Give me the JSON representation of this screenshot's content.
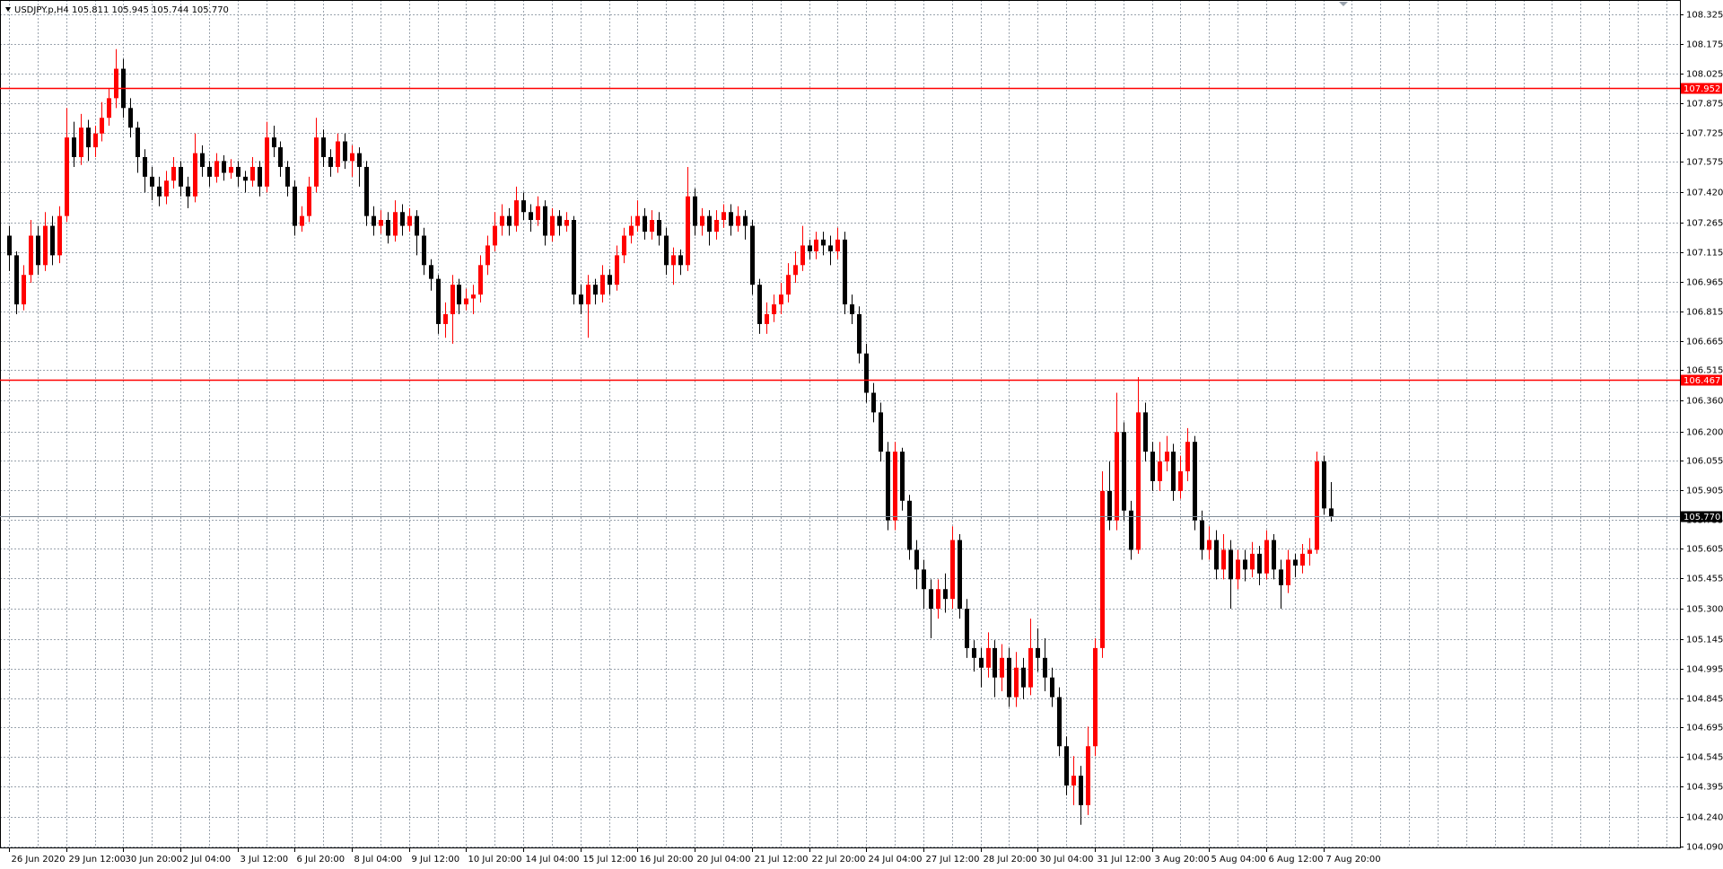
{
  "chart_data": {
    "type": "candlestick",
    "title": "USDJPY.p,H4  105.811 105.945 105.744 105.770",
    "bull_color": "#ff0000",
    "bear_color": "#000000",
    "grid": true,
    "ylim": [
      104.08,
      108.4
    ],
    "yticks": [
      108.325,
      108.175,
      108.025,
      107.875,
      107.725,
      107.575,
      {
        "value": 107.42,
        "label": "107.420"
      },
      107.265,
      107.115,
      106.965,
      106.815,
      106.665,
      106.515,
      {
        "value": 106.36,
        "label": "106.360"
      },
      {
        "value": 106.2,
        "label": "106.200"
      },
      106.055,
      105.905,
      105.755,
      105.605,
      105.455,
      {
        "value": 105.3,
        "label": "105.300"
      },
      105.145,
      104.995,
      104.845,
      104.695,
      104.545,
      104.395,
      {
        "value": 104.24,
        "label": "104.240"
      },
      {
        "value": 104.09,
        "label": "104.090"
      }
    ],
    "hlines": [
      {
        "value": 107.952,
        "color": "#ff0000"
      },
      {
        "value": 106.467,
        "color": "#ff0000"
      },
      {
        "value": 105.77,
        "label": "105.770",
        "color": "#000000"
      }
    ],
    "categories": [
      "26 Jun 2020",
      null,
      null,
      null,
      null,
      null,
      null,
      null,
      "29 Jun 12:00",
      null,
      null,
      null,
      null,
      null,
      null,
      null,
      "30 Jun 20:00",
      null,
      null,
      null,
      null,
      null,
      null,
      null,
      "2 Jul 04:00",
      null,
      null,
      null,
      null,
      null,
      null,
      null,
      "3 Jul 12:00",
      null,
      null,
      null,
      null,
      null,
      null,
      null,
      "6 Jul 20:00",
      null,
      null,
      null,
      null,
      null,
      null,
      null,
      "8 Jul 04:00",
      null,
      null,
      null,
      null,
      null,
      null,
      null,
      "9 Jul 12:00",
      null,
      null,
      null,
      null,
      null,
      null,
      null,
      "10 Jul 20:00",
      null,
      null,
      null,
      null,
      null,
      null,
      null,
      "14 Jul 04:00",
      null,
      null,
      null,
      null,
      null,
      null,
      null,
      "15 Jul 12:00",
      null,
      null,
      null,
      null,
      null,
      null,
      null,
      "16 Jul 20:00",
      null,
      null,
      null,
      null,
      null,
      null,
      null,
      "20 Jul 04:00",
      null,
      null,
      null,
      null,
      null,
      null,
      null,
      "21 Jul 12:00",
      null,
      null,
      null,
      null,
      null,
      null,
      null,
      "22 Jul 20:00",
      null,
      null,
      null,
      null,
      null,
      null,
      null,
      "24 Jul 04:00",
      null,
      null,
      null,
      null,
      null,
      null,
      null,
      "27 Jul 12:00",
      null,
      null,
      null,
      null,
      null,
      null,
      null,
      "28 Jul 20:00",
      null,
      null,
      null,
      null,
      null,
      null,
      null,
      "30 Jul 04:00",
      null,
      null,
      null,
      null,
      null,
      null,
      null,
      "31 Jul 12:00",
      null,
      null,
      null,
      null,
      null,
      null,
      null,
      "3 Aug 20:00",
      null,
      null,
      null,
      null,
      null,
      null,
      null,
      "5 Aug 04:00",
      null,
      null,
      null,
      null,
      null,
      null,
      null,
      "6 Aug 12:00",
      null,
      null,
      null,
      null,
      null,
      null,
      null,
      "7 Aug 20:00",
      null
    ],
    "open": [
      107.2,
      107.1,
      106.85,
      107.0,
      107.2,
      107.05,
      107.25,
      107.1,
      107.3,
      107.7,
      107.6,
      107.75,
      107.65,
      107.72,
      107.8,
      107.9,
      108.05,
      107.85,
      107.75,
      107.6,
      107.5,
      107.45,
      107.4,
      107.48,
      107.55,
      107.45,
      107.4,
      107.62,
      107.55,
      107.5,
      107.58,
      107.52,
      107.55,
      107.5,
      107.48,
      107.55,
      107.45,
      107.7,
      107.65,
      107.55,
      107.45,
      107.25,
      107.3,
      107.45,
      107.7,
      107.6,
      107.55,
      107.68,
      107.58,
      107.62,
      107.55,
      107.3,
      107.25,
      107.28,
      107.2,
      107.32,
      107.25,
      107.3,
      107.2,
      107.05,
      106.98,
      106.75,
      106.8,
      106.95,
      106.85,
      106.88,
      106.9,
      107.05,
      107.15,
      107.25,
      107.3,
      107.25,
      107.38,
      107.32,
      107.28,
      107.35,
      107.2,
      107.3,
      107.25,
      107.28,
      106.9,
      106.85,
      106.95,
      106.9,
      107.0,
      106.95,
      107.1,
      107.2,
      107.25,
      107.3,
      107.22,
      107.28,
      107.2,
      107.05,
      107.1,
      107.05,
      107.4,
      107.25,
      107.3,
      107.22,
      107.28,
      107.32,
      107.25,
      107.3,
      107.25,
      106.95,
      106.75,
      106.8,
      106.85,
      106.9,
      107.0,
      107.05,
      107.15,
      107.12,
      107.18,
      107.15,
      107.12,
      107.18,
      106.85,
      106.8,
      106.6,
      106.4,
      106.3,
      106.1,
      105.75,
      106.1,
      105.85,
      105.6,
      105.5,
      105.4,
      105.3,
      105.4,
      105.35,
      105.65,
      105.3,
      105.1,
      105.05,
      105.0,
      105.1,
      104.95,
      105.05,
      104.85,
      105.0,
      104.9,
      105.1,
      105.05,
      104.95,
      104.85,
      104.6,
      104.4,
      104.45,
      104.3,
      104.6,
      105.1,
      105.9,
      105.75,
      106.2,
      105.8,
      105.6,
      106.3,
      106.1,
      105.95,
      106.05,
      106.1,
      105.9,
      106.0,
      106.15,
      105.75,
      105.6,
      105.65,
      105.5,
      105.6,
      105.45,
      105.55,
      105.5,
      105.58,
      105.48,
      105.65,
      105.5,
      105.42,
      105.55,
      105.52,
      105.58,
      105.6,
      106.05,
      105.811
    ],
    "high": [
      107.25,
      107.12,
      107.05,
      107.28,
      107.25,
      107.32,
      107.3,
      107.35,
      107.85,
      107.78,
      107.82,
      107.79,
      107.76,
      107.88,
      107.95,
      108.15,
      108.1,
      107.9,
      107.78,
      107.64,
      107.55,
      107.5,
      107.53,
      107.6,
      107.58,
      107.5,
      107.72,
      107.66,
      107.58,
      107.62,
      107.61,
      107.59,
      107.58,
      107.53,
      107.6,
      107.58,
      107.78,
      107.76,
      107.68,
      107.58,
      107.48,
      107.35,
      107.5,
      107.8,
      107.74,
      107.64,
      107.72,
      107.72,
      107.66,
      107.65,
      107.58,
      107.35,
      107.33,
      107.32,
      107.38,
      107.36,
      107.34,
      107.33,
      107.24,
      107.08,
      107.0,
      106.86,
      107.0,
      106.98,
      106.93,
      106.95,
      107.1,
      107.2,
      107.32,
      107.36,
      107.34,
      107.45,
      107.42,
      107.36,
      107.4,
      107.38,
      107.34,
      107.33,
      107.32,
      107.3,
      106.95,
      107.0,
      106.98,
      107.05,
      107.03,
      107.15,
      107.24,
      107.3,
      107.38,
      107.34,
      107.33,
      107.32,
      107.24,
      107.14,
      107.13,
      107.55,
      107.44,
      107.34,
      107.33,
      107.33,
      107.36,
      107.36,
      107.35,
      107.33,
      107.28,
      106.98,
      106.86,
      106.9,
      106.96,
      107.06,
      107.12,
      107.25,
      107.18,
      107.22,
      107.22,
      107.2,
      107.24,
      107.22,
      106.9,
      106.84,
      106.65,
      106.45,
      106.35,
      106.15,
      106.15,
      106.12,
      105.88,
      105.65,
      105.55,
      105.45,
      105.45,
      105.48,
      105.72,
      105.68,
      105.35,
      105.14,
      105.1,
      105.18,
      105.14,
      105.12,
      105.1,
      105.08,
      105.05,
      105.25,
      105.2,
      105.15,
      105.0,
      104.9,
      104.65,
      104.55,
      104.5,
      104.7,
      105.15,
      106.0,
      106.05,
      106.4,
      106.25,
      105.85,
      106.48,
      106.35,
      106.15,
      106.15,
      106.18,
      106.14,
      106.08,
      106.22,
      106.18,
      105.8,
      105.72,
      105.7,
      105.68,
      105.65,
      105.6,
      105.6,
      105.64,
      105.62,
      105.7,
      105.68,
      105.55,
      105.6,
      105.58,
      105.63,
      105.66,
      106.1,
      106.08,
      105.945
    ],
    "low": [
      107.02,
      106.8,
      106.82,
      106.96,
      107.0,
      107.02,
      107.05,
      107.06,
      107.27,
      107.55,
      107.56,
      107.58,
      107.6,
      107.68,
      107.76,
      107.85,
      107.8,
      107.7,
      107.52,
      107.42,
      107.38,
      107.35,
      107.36,
      107.44,
      107.4,
      107.34,
      107.37,
      107.5,
      107.45,
      107.47,
      107.48,
      107.49,
      107.45,
      107.42,
      107.45,
      107.4,
      107.42,
      107.6,
      107.5,
      107.4,
      107.2,
      107.22,
      107.27,
      107.42,
      107.55,
      107.5,
      107.52,
      107.54,
      107.5,
      107.45,
      107.25,
      107.2,
      107.21,
      107.16,
      107.17,
      107.2,
      107.22,
      107.1,
      107.0,
      106.92,
      106.7,
      106.68,
      106.65,
      106.8,
      106.82,
      106.8,
      106.86,
      107.0,
      107.12,
      107.2,
      107.2,
      107.22,
      107.28,
      107.22,
      107.25,
      107.15,
      107.17,
      107.2,
      107.22,
      106.85,
      106.8,
      106.68,
      106.85,
      106.86,
      106.9,
      106.92,
      107.06,
      107.16,
      107.22,
      107.18,
      107.18,
      107.15,
      107.0,
      106.95,
      107.0,
      107.02,
      107.2,
      107.2,
      107.15,
      107.18,
      107.24,
      107.2,
      107.22,
      107.18,
      106.9,
      106.7,
      106.7,
      106.76,
      106.8,
      106.86,
      106.96,
      107.02,
      107.08,
      107.08,
      107.1,
      107.05,
      107.08,
      106.8,
      106.75,
      106.55,
      106.35,
      106.25,
      106.05,
      105.7,
      105.7,
      105.8,
      105.55,
      105.4,
      105.3,
      105.15,
      105.25,
      105.28,
      105.3,
      105.25,
      105.05,
      104.98,
      104.9,
      104.95,
      104.85,
      104.88,
      104.8,
      104.8,
      104.84,
      104.86,
      104.98,
      104.88,
      104.8,
      104.55,
      104.35,
      104.3,
      104.2,
      104.25,
      104.55,
      105.05,
      105.7,
      105.7,
      105.75,
      105.55,
      105.58,
      106.05,
      105.9,
      105.9,
      106.0,
      105.85,
      105.86,
      105.95,
      105.7,
      105.55,
      105.55,
      105.45,
      105.45,
      105.3,
      105.4,
      105.44,
      105.46,
      105.42,
      105.45,
      105.45,
      105.3,
      105.38,
      105.46,
      105.48,
      105.52,
      105.58,
      105.78,
      105.744
    ],
    "close": [
      107.1,
      106.85,
      107.0,
      107.2,
      107.05,
      107.25,
      107.1,
      107.3,
      107.7,
      107.6,
      107.75,
      107.65,
      107.72,
      107.8,
      107.9,
      108.05,
      107.85,
      107.75,
      107.6,
      107.5,
      107.45,
      107.4,
      107.48,
      107.55,
      107.45,
      107.4,
      107.62,
      107.55,
      107.5,
      107.58,
      107.52,
      107.55,
      107.5,
      107.48,
      107.55,
      107.45,
      107.7,
      107.65,
      107.55,
      107.45,
      107.25,
      107.3,
      107.45,
      107.7,
      107.6,
      107.55,
      107.68,
      107.58,
      107.62,
      107.55,
      107.3,
      107.25,
      107.28,
      107.2,
      107.32,
      107.25,
      107.3,
      107.2,
      107.05,
      106.98,
      106.75,
      106.8,
      106.95,
      106.85,
      106.88,
      106.9,
      107.05,
      107.15,
      107.25,
      107.3,
      107.25,
      107.38,
      107.32,
      107.28,
      107.35,
      107.2,
      107.3,
      107.25,
      107.28,
      106.9,
      106.85,
      106.95,
      106.9,
      107.0,
      106.95,
      107.1,
      107.2,
      107.25,
      107.3,
      107.22,
      107.28,
      107.2,
      107.05,
      107.1,
      107.05,
      107.4,
      107.25,
      107.3,
      107.22,
      107.28,
      107.32,
      107.25,
      107.3,
      107.25,
      106.95,
      106.75,
      106.8,
      106.85,
      106.9,
      107.0,
      107.05,
      107.15,
      107.12,
      107.18,
      107.15,
      107.12,
      107.18,
      106.85,
      106.8,
      106.6,
      106.4,
      106.3,
      106.1,
      105.75,
      106.1,
      105.85,
      105.6,
      105.5,
      105.4,
      105.3,
      105.4,
      105.35,
      105.65,
      105.3,
      105.1,
      105.05,
      105.0,
      105.1,
      104.95,
      105.05,
      104.85,
      105.0,
      104.9,
      105.1,
      105.05,
      104.95,
      104.85,
      104.6,
      104.4,
      104.45,
      104.3,
      104.6,
      105.1,
      105.9,
      105.75,
      106.2,
      105.8,
      105.6,
      106.3,
      106.1,
      105.95,
      106.05,
      106.1,
      105.9,
      106.0,
      106.15,
      105.75,
      105.6,
      105.65,
      105.5,
      105.6,
      105.45,
      105.55,
      105.5,
      105.58,
      105.48,
      105.65,
      105.5,
      105.42,
      105.55,
      105.52,
      105.58,
      105.6,
      106.05,
      105.811,
      105.77
    ]
  }
}
